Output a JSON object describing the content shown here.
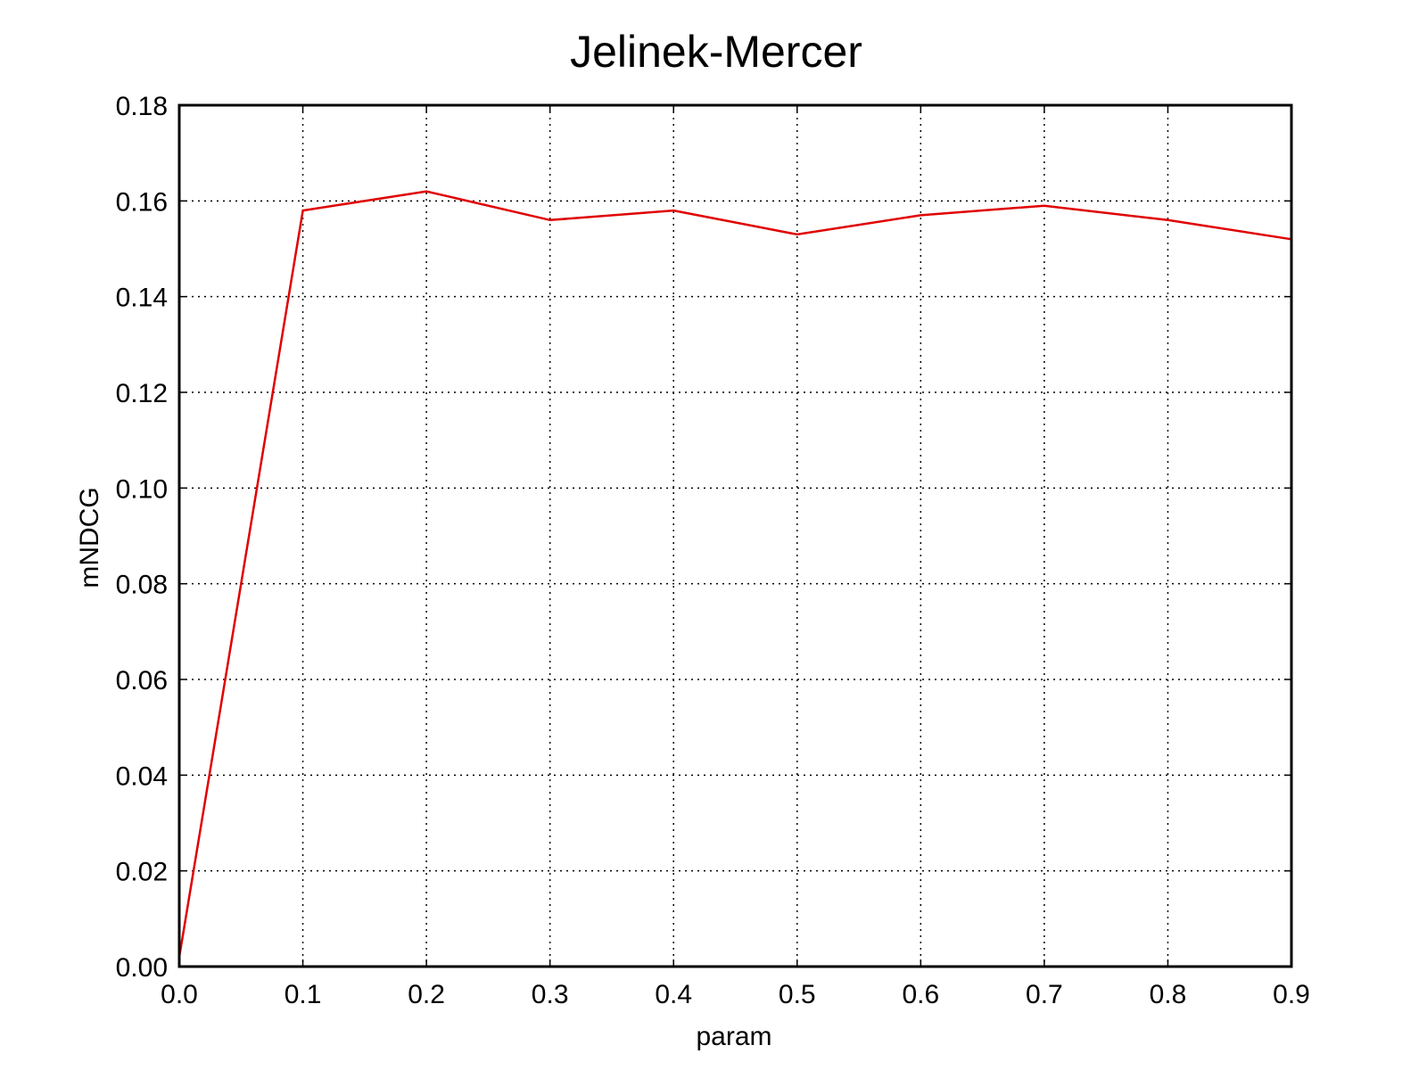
{
  "chart_data": {
    "type": "line",
    "title": "Jelinek-Mercer",
    "xlabel": "param",
    "ylabel": "mNDCG",
    "xlim": [
      0.0,
      0.9
    ],
    "ylim": [
      0.0,
      0.18
    ],
    "x_ticks": [
      "0.0",
      "0.1",
      "0.2",
      "0.3",
      "0.4",
      "0.5",
      "0.6",
      "0.7",
      "0.8",
      "0.9"
    ],
    "y_ticks": [
      "0.00",
      "0.02",
      "0.04",
      "0.06",
      "0.08",
      "0.10",
      "0.12",
      "0.14",
      "0.16",
      "0.18"
    ],
    "grid": true,
    "series": [
      {
        "color": "#e00000",
        "x": [
          0.0,
          0.1,
          0.2,
          0.3,
          0.4,
          0.5,
          0.6,
          0.7,
          0.8,
          0.9
        ],
        "y": [
          0.002,
          0.158,
          0.162,
          0.156,
          0.158,
          0.153,
          0.157,
          0.159,
          0.156,
          0.152
        ]
      }
    ]
  }
}
